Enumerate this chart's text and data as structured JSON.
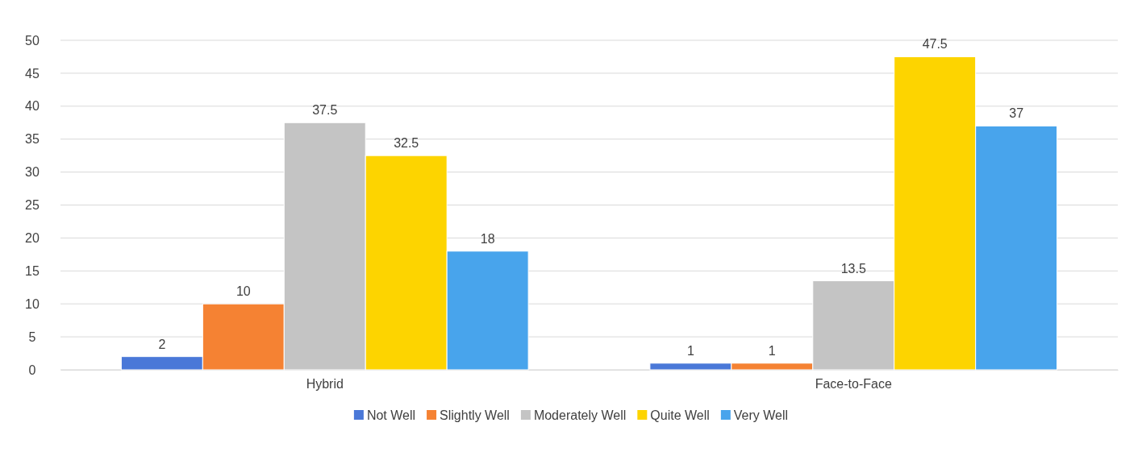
{
  "chart_data": {
    "type": "bar",
    "categories": [
      "Hybrid",
      "Face-to-Face"
    ],
    "series": [
      {
        "name": "Not Well",
        "color": "#4a78d8",
        "values": [
          2,
          1
        ]
      },
      {
        "name": "Slightly Well",
        "color": "#f58233",
        "values": [
          10,
          1
        ]
      },
      {
        "name": "Moderately Well",
        "color": "#c4c4c4",
        "values": [
          37.5,
          13.5
        ]
      },
      {
        "name": "Quite Well",
        "color": "#fdd400",
        "values": [
          32.5,
          47.5
        ]
      },
      {
        "name": "Very Well",
        "color": "#48a4ec",
        "values": [
          18,
          37
        ]
      }
    ],
    "ylim": [
      0,
      50
    ],
    "yticks": [
      0,
      5,
      10,
      15,
      20,
      25,
      30,
      35,
      40,
      45,
      50
    ],
    "grid": "y",
    "data_labels": true,
    "legend": "bottom"
  }
}
